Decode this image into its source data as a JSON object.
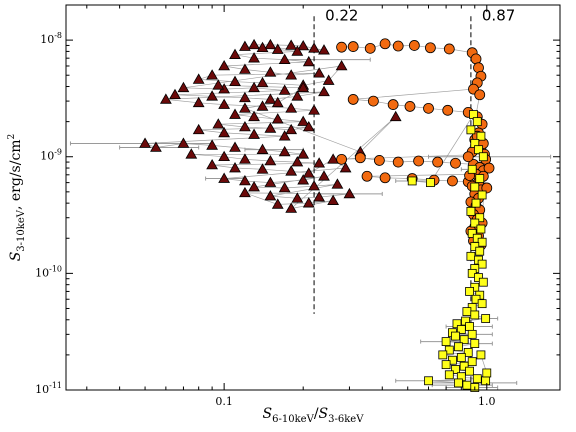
{
  "chart_data": {
    "type": "scatter",
    "title": "",
    "xlabel": "S6-10keV/S3-6keV",
    "ylabel": "S3-10keV, erg/s/cm2",
    "xscale": "log",
    "yscale": "log",
    "xlim": [
      0.025,
      1.9
    ],
    "ylim": [
      1e-11,
      2e-08
    ],
    "grid": false,
    "x_ticks": [
      {
        "value": 0.1,
        "label": "0.1"
      },
      {
        "value": 1.0,
        "label": "1.0"
      }
    ],
    "y_ticks": [
      {
        "value": 1e-11,
        "label": "10",
        "exp": "-11"
      },
      {
        "value": 1e-10,
        "label": "10",
        "exp": "-10"
      },
      {
        "value": 1e-09,
        "label": "10",
        "exp": "-9"
      },
      {
        "value": 1e-08,
        "label": "10",
        "exp": "-8"
      }
    ],
    "vlines": [
      {
        "x": 0.22,
        "label": "0.22",
        "ymin": 4.5e-11,
        "ymax": 1.6e-08
      },
      {
        "x": 0.87,
        "label": "0.87",
        "ymin": 1e-11,
        "ymax": 1.6e-08
      }
    ],
    "colors": {
      "triangle": "#6b0a0a",
      "circle": "#f26a10",
      "square": "#ffff1a",
      "errorbar": "#9a9a9a",
      "connector": "#8a8a8a"
    },
    "series": [
      {
        "marker": "triangle",
        "points": [
          [
            0.13,
            9.1e-09
          ],
          [
            0.15,
            9.1e-09
          ],
          [
            0.18,
            9e-09
          ],
          [
            0.2,
            8.9e-09
          ],
          [
            0.22,
            8.5e-09
          ],
          [
            0.24,
            8.2e-09
          ],
          [
            0.12,
            8.8e-09
          ],
          [
            0.14,
            8.6e-09
          ],
          [
            0.16,
            8.3e-09
          ],
          [
            0.19,
            8e-09
          ],
          [
            0.11,
            7.5e-09
          ],
          [
            0.13,
            7e-09
          ],
          [
            0.17,
            6.8e-09
          ],
          [
            0.21,
            6.5e-09
          ],
          [
            0.1,
            6e-09
          ],
          [
            0.12,
            5.6e-09
          ],
          [
            0.15,
            5.3e-09
          ],
          [
            0.18,
            5e-09
          ],
          [
            0.23,
            5.2e-09
          ],
          [
            0.09,
            5e-09
          ],
          [
            0.08,
            4.6e-09
          ],
          [
            0.11,
            4.4e-09
          ],
          [
            0.14,
            4.3e-09
          ],
          [
            0.2,
            4.1e-09
          ],
          [
            0.25,
            4.5e-09
          ],
          [
            0.28,
            6e-09
          ],
          [
            0.07,
            3.9e-09
          ],
          [
            0.1,
            3.8e-09
          ],
          [
            0.13,
            3.9e-09
          ],
          [
            0.17,
            3.7e-09
          ],
          [
            0.065,
            3.4e-09
          ],
          [
            0.09,
            3.3e-09
          ],
          [
            0.12,
            3.2e-09
          ],
          [
            0.15,
            3.1e-09
          ],
          [
            0.19,
            3.3e-09
          ],
          [
            0.24,
            3.6e-09
          ],
          [
            0.06,
            3.1e-09
          ],
          [
            0.08,
            2.9e-09
          ],
          [
            0.1,
            2.8e-09
          ],
          [
            0.14,
            2.7e-09
          ],
          [
            0.18,
            2.6e-09
          ],
          [
            0.22,
            2.5e-09
          ],
          [
            0.11,
            2.3e-09
          ],
          [
            0.13,
            2.2e-09
          ],
          [
            0.16,
            2.1e-09
          ],
          [
            0.2,
            2e-09
          ],
          [
            0.095,
            1.9e-09
          ],
          [
            0.12,
            1.8e-09
          ],
          [
            0.15,
            1.75e-09
          ],
          [
            0.18,
            1.7e-09
          ],
          [
            0.21,
            1.8e-09
          ],
          [
            0.08,
            1.7e-09
          ],
          [
            0.1,
            1.6e-09
          ],
          [
            0.13,
            1.55e-09
          ],
          [
            0.17,
            1.5e-09
          ],
          [
            0.05,
            1.3e-09
          ],
          [
            0.055,
            1.2e-09
          ],
          [
            0.07,
            1.3e-09
          ],
          [
            0.09,
            1.25e-09
          ],
          [
            0.11,
            1.2e-09
          ],
          [
            0.14,
            1.15e-09
          ],
          [
            0.17,
            1.1e-09
          ],
          [
            0.2,
            1.05e-09
          ],
          [
            0.075,
            1.05e-09
          ],
          [
            0.1,
            1e-09
          ],
          [
            0.12,
            9.5e-10
          ],
          [
            0.15,
            9.2e-10
          ],
          [
            0.19,
            9e-10
          ],
          [
            0.23,
            8.8e-10
          ],
          [
            0.09,
            8.5e-10
          ],
          [
            0.11,
            8e-10
          ],
          [
            0.14,
            7.8e-10
          ],
          [
            0.18,
            7.5e-10
          ],
          [
            0.21,
            7.2e-10
          ],
          [
            0.26,
            9.5e-10
          ],
          [
            0.29,
            8e-10
          ],
          [
            0.1,
            6.5e-10
          ],
          [
            0.12,
            6.2e-10
          ],
          [
            0.15,
            6e-10
          ],
          [
            0.2,
            6.3e-10
          ],
          [
            0.24,
            6.8e-10
          ],
          [
            0.13,
            5.5e-10
          ],
          [
            0.17,
            5.4e-10
          ],
          [
            0.22,
            5.6e-10
          ],
          [
            0.27,
            5.8e-10
          ],
          [
            0.15,
            4.6e-10
          ],
          [
            0.19,
            4.4e-10
          ],
          [
            0.23,
            4.5e-10
          ],
          [
            0.3,
            4.8e-10
          ],
          [
            0.12,
            4.9e-10
          ],
          [
            0.16,
            3.9e-10
          ],
          [
            0.21,
            4e-10
          ],
          [
            0.26,
            4.2e-10
          ],
          [
            0.18,
            3.6e-10
          ],
          [
            0.45,
            2.2e-09
          ],
          [
            0.33,
            1.1e-09
          ],
          [
            0.12,
            2.6e-09
          ],
          [
            0.16,
            2.9e-09
          ],
          [
            0.2,
            3.9e-09
          ],
          [
            0.095,
            4.1e-09
          ]
        ]
      },
      {
        "marker": "circle",
        "points": [
          [
            0.28,
            8.7e-09
          ],
          [
            0.31,
            8.8e-09
          ],
          [
            0.36,
            8.5e-09
          ],
          [
            0.41,
            9.3e-09
          ],
          [
            0.46,
            8.9e-09
          ],
          [
            0.53,
            9e-09
          ],
          [
            0.61,
            8.6e-09
          ],
          [
            0.72,
            8.4e-09
          ],
          [
            0.88,
            7.8e-09
          ],
          [
            0.91,
            6.9e-09
          ],
          [
            0.93,
            5.8e-09
          ],
          [
            0.95,
            4.9e-09
          ],
          [
            0.92,
            4.3e-09
          ],
          [
            0.89,
            3.8e-09
          ],
          [
            0.31,
            3.1e-09
          ],
          [
            0.37,
            3e-09
          ],
          [
            0.44,
            2.8e-09
          ],
          [
            0.51,
            2.7e-09
          ],
          [
            0.6,
            2.6e-09
          ],
          [
            0.71,
            2.5e-09
          ],
          [
            0.85,
            2.4e-09
          ],
          [
            0.92,
            2.2e-09
          ],
          [
            0.96,
            1.9e-09
          ],
          [
            0.93,
            1.6e-09
          ],
          [
            0.9,
            1.4e-09
          ],
          [
            0.95,
            1.2e-09
          ],
          [
            0.98,
            1.05e-09
          ],
          [
            0.28,
            9.5e-10
          ],
          [
            0.33,
            9.8e-10
          ],
          [
            0.39,
            9.3e-10
          ],
          [
            0.46,
            9e-10
          ],
          [
            0.55,
            9.2e-10
          ],
          [
            0.65,
            9e-10
          ],
          [
            0.76,
            8.8e-10
          ],
          [
            0.89,
            8.6e-10
          ],
          [
            0.94,
            8.1e-10
          ],
          [
            0.97,
            7.6e-10
          ],
          [
            0.91,
            7.1e-10
          ],
          [
            0.35,
            6.8e-10
          ],
          [
            0.41,
            6.6e-10
          ],
          [
            0.52,
            6.5e-10
          ],
          [
            0.63,
            6.3e-10
          ],
          [
            0.74,
            6.2e-10
          ],
          [
            0.85,
            6.1e-10
          ],
          [
            0.93,
            6e-10
          ],
          [
            0.88,
            5.6e-10
          ],
          [
            0.95,
            5.2e-10
          ],
          [
            0.9,
            4.8e-10
          ],
          [
            0.93,
            4.4e-10
          ],
          [
            0.87,
            4.1e-10
          ],
          [
            0.91,
            3.8e-10
          ],
          [
            0.94,
            3.5e-10
          ],
          [
            0.89,
            3.2e-10
          ],
          [
            0.92,
            2.9e-10
          ],
          [
            0.96,
            2.7e-10
          ],
          [
            0.9,
            2.5e-10
          ],
          [
            0.87,
            2.3e-10
          ],
          [
            0.93,
            2.1e-10
          ],
          [
            0.89,
            1.9e-10
          ],
          [
            0.95,
            1.75e-10
          ],
          [
            0.99,
            9.5e-10
          ],
          [
            1.02,
            8e-10
          ],
          [
            0.97,
            6.8e-10
          ],
          [
            1.0,
            5.4e-10
          ],
          [
            0.86,
            6.9e-10
          ],
          [
            0.92,
            1.5e-09
          ],
          [
            0.97,
            1.3e-09
          ],
          [
            0.88,
            1.1e-09
          ],
          [
            0.85,
            1e-09
          ],
          [
            0.94,
            3.4e-09
          ]
        ]
      },
      {
        "marker": "square",
        "points": [
          [
            0.52,
            6.2e-10
          ],
          [
            0.61,
            6e-10
          ],
          [
            0.89,
            2.3e-09
          ],
          [
            0.92,
            2e-09
          ],
          [
            0.87,
            1.7e-09
          ],
          [
            0.95,
            1.5e-09
          ],
          [
            0.9,
            1.3e-09
          ],
          [
            0.93,
            1.15e-09
          ],
          [
            0.97,
            1e-09
          ],
          [
            0.88,
            7.8e-10
          ],
          [
            0.94,
            6.5e-10
          ],
          [
            0.9,
            5.5e-10
          ],
          [
            0.96,
            4.7e-10
          ],
          [
            0.91,
            4e-10
          ],
          [
            0.87,
            3.4e-10
          ],
          [
            0.94,
            3e-10
          ],
          [
            0.9,
            2.7e-10
          ],
          [
            0.95,
            2.4e-10
          ],
          [
            0.88,
            2.2e-10
          ],
          [
            0.92,
            2e-10
          ],
          [
            0.96,
            1.85e-10
          ],
          [
            0.9,
            1.7e-10
          ],
          [
            0.94,
            1.55e-10
          ],
          [
            0.87,
            1.4e-10
          ],
          [
            0.93,
            1.3e-10
          ],
          [
            0.96,
            1.2e-10
          ],
          [
            0.9,
            1.1e-10
          ],
          [
            0.88,
            1e-10
          ],
          [
            0.93,
            9.2e-11
          ],
          [
            0.97,
            8.4e-11
          ],
          [
            0.9,
            7.6e-11
          ],
          [
            0.86,
            7e-11
          ],
          [
            0.94,
            6.5e-11
          ],
          [
            0.91,
            6e-11
          ],
          [
            0.96,
            5.5e-11
          ],
          [
            0.88,
            5.1e-11
          ],
          [
            0.84,
            4.7e-11
          ],
          [
            0.9,
            4.4e-11
          ],
          [
            0.99,
            4.1e-11
          ],
          [
            0.83,
            3.9e-11
          ],
          [
            0.77,
            3.7e-11
          ],
          [
            0.86,
            3.5e-11
          ],
          [
            0.8,
            3.3e-11
          ],
          [
            0.74,
            3.1e-11
          ],
          [
            0.88,
            3e-11
          ],
          [
            0.76,
            2.9e-11
          ],
          [
            0.82,
            2.7e-11
          ],
          [
            0.7,
            2.6e-11
          ],
          [
            0.9,
            2.5e-11
          ],
          [
            0.78,
            2.35e-11
          ],
          [
            0.72,
            2.2e-11
          ],
          [
            0.85,
            2.1e-11
          ],
          [
            0.68,
            2e-11
          ],
          [
            0.8,
            1.9e-11
          ],
          [
            0.74,
            1.8e-11
          ],
          [
            0.88,
            1.75e-11
          ],
          [
            0.7,
            1.65e-11
          ],
          [
            0.82,
            1.6e-11
          ],
          [
            0.76,
            1.5e-11
          ],
          [
            0.86,
            1.45e-11
          ],
          [
            0.72,
            1.35e-11
          ],
          [
            0.8,
            1.3e-11
          ],
          [
            0.92,
            1.25e-11
          ],
          [
            0.6,
            1.2e-11
          ],
          [
            0.78,
            1.15e-11
          ],
          [
            0.84,
            1.1e-11
          ],
          [
            0.9,
            1.05e-11
          ],
          [
            0.99,
            1.2e-11
          ],
          [
            1.0,
            1.4e-11
          ],
          [
            0.95,
            2e-11
          ]
        ]
      }
    ],
    "errorbars": [
      {
        "x": 0.05,
        "y": 1.3e-09,
        "xlo": 0.026,
        "xhi": 0.09
      },
      {
        "x": 0.055,
        "y": 1.2e-09,
        "xlo": 0.04,
        "xhi": 0.08
      },
      {
        "x": 0.95,
        "y": 1e-09,
        "xlo": 0.6,
        "xhi": 1.75
      },
      {
        "x": 0.25,
        "y": 6.8e-09,
        "xlo": 0.17,
        "xhi": 0.36
      },
      {
        "x": 0.3,
        "y": 4.8e-10,
        "xlo": 0.22,
        "xhi": 0.4
      },
      {
        "x": 0.15,
        "y": 1.15e-09,
        "xlo": 0.12,
        "xhi": 0.2
      },
      {
        "x": 0.6,
        "y": 1.2e-11,
        "xlo": 0.45,
        "xhi": 0.78
      },
      {
        "x": 0.78,
        "y": 1.15e-11,
        "xlo": 0.6,
        "xhi": 1.3
      },
      {
        "x": 0.84,
        "y": 1.1e-11,
        "xlo": 0.62,
        "xhi": 1.05
      },
      {
        "x": 0.9,
        "y": 1.05e-11,
        "xlo": 0.7,
        "xhi": 1.1
      },
      {
        "x": 0.7,
        "y": 2.6e-11,
        "xlo": 0.56,
        "xhi": 0.85
      },
      {
        "x": 0.88,
        "y": 3e-11,
        "xlo": 0.75,
        "xhi": 1.05
      },
      {
        "x": 0.86,
        "y": 3.5e-11,
        "xlo": 0.7,
        "xhi": 1.05
      },
      {
        "x": 0.9,
        "y": 2.5e-11,
        "xlo": 0.78,
        "xhi": 1.05
      },
      {
        "x": 0.99,
        "y": 4.1e-11,
        "xlo": 0.88,
        "xhi": 1.1
      },
      {
        "x": 0.88,
        "y": 7.8e-10,
        "xlo": 0.8,
        "xhi": 0.97
      },
      {
        "x": 0.52,
        "y": 6.2e-10,
        "xlo": 0.45,
        "xhi": 0.6
      },
      {
        "x": 0.1,
        "y": 6.5e-10,
        "xlo": 0.085,
        "xhi": 0.118
      }
    ]
  }
}
